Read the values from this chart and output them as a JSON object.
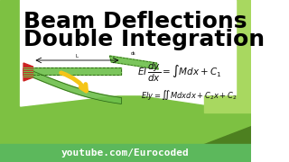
{
  "title_line1": "Beam Deflections",
  "title_line2": "Double Integration",
  "title_color": "#000000",
  "title_fontsize": 18,
  "bg_white": "#ffffff",
  "bg_green_main": "#7dc142",
  "bg_green_dark": "#4d8020",
  "bg_green_light": "#a8d860",
  "footer_text": "youtube.com/Eurocoded",
  "footer_bg": "#5cb85c",
  "footer_text_color": "#ffffff",
  "footer_fontsize": 8,
  "beam_green": "#6dbf4a",
  "beam_edge": "#2a6010",
  "beam_fill_light": "#c8e8a0",
  "support_red": "#cc2222",
  "arrow_yellow": "#f5c518",
  "eq_color": "#111111"
}
